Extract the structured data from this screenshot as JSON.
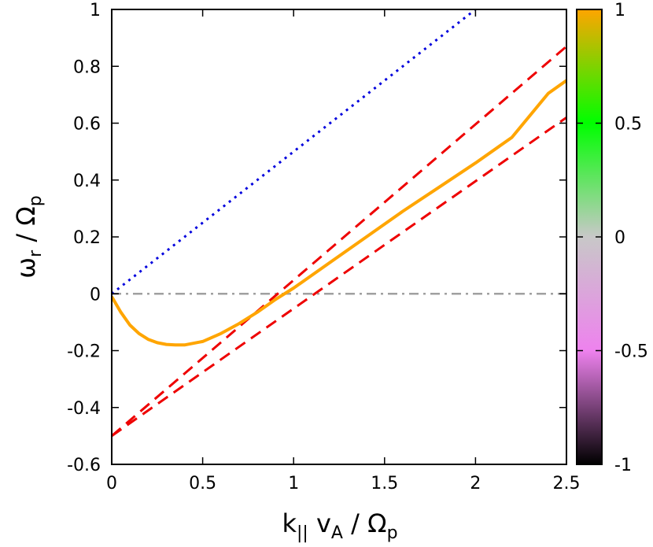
{
  "chart_data": {
    "type": "line",
    "title": "",
    "xlabel": {
      "main": "k",
      "sub1": "||",
      "mid": " v",
      "sub2": "A",
      "tail": " / Ω",
      "sub3": "p"
    },
    "ylabel": {
      "main": "ω",
      "sub1": "r",
      "tail": " / Ω",
      "sub2": "p"
    },
    "xlim": [
      0,
      2.5
    ],
    "ylim": [
      -0.6,
      1.0
    ],
    "xticks": [
      "0",
      "0.5",
      "1",
      "1.5",
      "2",
      "2.5"
    ],
    "xtick_values": [
      0,
      0.5,
      1,
      1.5,
      2,
      2.5
    ],
    "yticks": [
      "-0.6",
      "-0.4",
      "-0.2",
      "0",
      "0.2",
      "0.4",
      "0.6",
      "0.8",
      "1"
    ],
    "ytick_values": [
      -0.6,
      -0.4,
      -0.2,
      0,
      0.2,
      0.4,
      0.6,
      0.8,
      1.0
    ],
    "grid": false,
    "series": [
      {
        "style": "solid",
        "color": "#ffa500",
        "x": [
          0,
          0.05,
          0.1,
          0.15,
          0.2,
          0.25,
          0.3,
          0.35,
          0.4,
          0.5,
          0.6,
          0.7,
          0.8,
          0.9,
          1.0,
          1.2,
          1.4,
          1.6,
          1.8,
          2.0,
          2.2,
          2.4,
          2.5
        ],
        "y": [
          -0.01,
          -0.065,
          -0.11,
          -0.14,
          -0.16,
          -0.172,
          -0.178,
          -0.18,
          -0.18,
          -0.168,
          -0.14,
          -0.105,
          -0.065,
          -0.02,
          0.02,
          0.11,
          0.2,
          0.29,
          0.375,
          0.46,
          0.55,
          0.705,
          0.75
        ]
      },
      {
        "style": "dotted",
        "color": "#0000dd",
        "x": [
          0,
          2.0
        ],
        "y": [
          0,
          1.0
        ]
      },
      {
        "style": "dashed",
        "color": "#ee0000",
        "x": [
          0,
          2.5
        ],
        "y": [
          -0.5,
          0.87
        ]
      },
      {
        "style": "dashed",
        "color": "#ee0000",
        "x": [
          0,
          2.5
        ],
        "y": [
          -0.5,
          0.62
        ]
      },
      {
        "style": "dashdot",
        "color": "#a0a0a0",
        "x": [
          0,
          2.5
        ],
        "y": [
          0,
          0
        ]
      }
    ],
    "colorbar": {
      "range": [
        -1,
        1
      ],
      "ticks": [
        "1",
        "0.5",
        "0",
        "-0.5",
        "-1"
      ],
      "tick_values": [
        1,
        0.5,
        0,
        -0.5,
        -1
      ],
      "stops": [
        "#000000",
        "#ee82ee",
        "#c8c8c8",
        "#00ff00",
        "#ffa500"
      ]
    }
  }
}
